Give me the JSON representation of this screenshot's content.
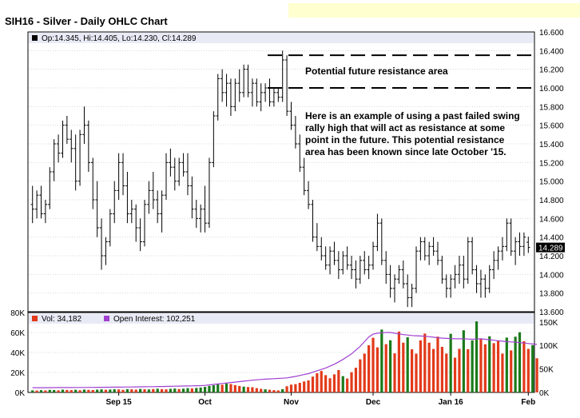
{
  "title": "SIH16 - Silver - Daily OHLC Chart",
  "price_panel": {
    "legend": "Op:14.345, Hi:14.405, Lo:14.230, Cl:14.289",
    "last_price_label": "14.289"
  },
  "volume_panel": {
    "volume_legend": "Vol: 34,182",
    "oi_legend": "Open Interest: 102,251"
  },
  "annotations": {
    "resistance_label": "Potential future resistance area",
    "note_lines": [
      "Here is an example of using a past failed swing",
      "rally high that will act as resistance at some",
      "point in the future.  This potential resistance",
      "area has been known since late October '15."
    ]
  },
  "colors": {
    "up_volume": "#1a7a1a",
    "down_volume": "#e23a1a",
    "open_interest": "#a040d0",
    "price_bar": "#000000",
    "legend_bar": "#e8eaf5"
  },
  "chart_data": [
    {
      "type": "ohlc",
      "title": "SIH16 - Silver - Daily OHLC Chart",
      "x_tick_labels": [
        "Sep 15",
        "Oct",
        "Nov",
        "Dec",
        "Jan 16",
        "Feb"
      ],
      "x_tick_bar_index": [
        20,
        40,
        60,
        79,
        97,
        115
      ],
      "y_tick_labels": [
        "13.600",
        "13.800",
        "14.000",
        "14.200",
        "14.400",
        "14.600",
        "14.800",
        "15.000",
        "15.200",
        "15.400",
        "15.600",
        "15.800",
        "16.000",
        "16.200",
        "16.400",
        "16.600"
      ],
      "ylim": [
        13.6,
        16.6
      ],
      "resistance_lines": [
        16.35,
        16.0
      ],
      "bars": [
        [
          14.75,
          14.95,
          14.55,
          14.7
        ],
        [
          14.7,
          14.9,
          14.6,
          14.85
        ],
        [
          14.85,
          14.95,
          14.6,
          14.65
        ],
        [
          14.65,
          14.8,
          14.55,
          14.75
        ],
        [
          14.75,
          15.15,
          14.7,
          15.1
        ],
        [
          15.1,
          15.45,
          15.0,
          15.4
        ],
        [
          15.4,
          15.5,
          15.2,
          15.3
        ],
        [
          15.3,
          15.65,
          15.25,
          15.6
        ],
        [
          15.6,
          15.7,
          15.4,
          15.45
        ],
        [
          15.45,
          15.55,
          15.2,
          15.35
        ],
        [
          15.35,
          15.5,
          14.9,
          15.0
        ],
        [
          15.0,
          15.55,
          14.95,
          15.5
        ],
        [
          15.5,
          15.8,
          15.4,
          15.6
        ],
        [
          15.6,
          15.65,
          15.1,
          15.2
        ],
        [
          15.2,
          15.25,
          14.7,
          14.8
        ],
        [
          14.8,
          15.0,
          14.4,
          14.5
        ],
        [
          14.5,
          14.6,
          14.05,
          14.2
        ],
        [
          14.2,
          14.4,
          14.1,
          14.35
        ],
        [
          14.35,
          14.7,
          14.3,
          14.65
        ],
        [
          14.65,
          15.0,
          14.55,
          14.9
        ],
        [
          14.9,
          15.3,
          14.8,
          15.2
        ],
        [
          15.2,
          15.3,
          14.85,
          14.95
        ],
        [
          14.95,
          15.1,
          14.55,
          14.65
        ],
        [
          14.65,
          14.8,
          14.55,
          14.7
        ],
        [
          14.7,
          14.75,
          14.35,
          14.5
        ],
        [
          14.5,
          14.6,
          14.25,
          14.35
        ],
        [
          14.35,
          14.8,
          14.3,
          14.75
        ],
        [
          14.75,
          15.0,
          14.65,
          14.9
        ],
        [
          14.9,
          15.1,
          14.7,
          14.8
        ],
        [
          14.8,
          14.9,
          14.55,
          14.65
        ],
        [
          14.65,
          14.9,
          14.45,
          14.85
        ],
        [
          14.85,
          15.3,
          14.8,
          15.2
        ],
        [
          15.2,
          15.35,
          15.05,
          15.15
        ],
        [
          15.15,
          15.25,
          14.9,
          15.0
        ],
        [
          15.0,
          15.25,
          14.95,
          15.2
        ],
        [
          15.2,
          15.3,
          15.05,
          15.1
        ],
        [
          15.1,
          15.3,
          14.85,
          14.95
        ],
        [
          14.95,
          15.05,
          14.6,
          14.7
        ],
        [
          14.7,
          14.8,
          14.5,
          14.6
        ],
        [
          14.6,
          14.75,
          14.45,
          14.7
        ],
        [
          14.7,
          14.95,
          14.45,
          14.55
        ],
        [
          14.55,
          15.25,
          14.5,
          15.2
        ],
        [
          15.2,
          15.75,
          15.15,
          15.7
        ],
        [
          15.7,
          16.15,
          15.65,
          16.1
        ],
        [
          16.1,
          16.2,
          15.85,
          15.95
        ],
        [
          15.95,
          16.15,
          15.8,
          16.05
        ],
        [
          16.05,
          16.1,
          15.7,
          15.8
        ],
        [
          15.8,
          16.1,
          15.75,
          16.05
        ],
        [
          16.05,
          16.2,
          15.85,
          15.95
        ],
        [
          15.95,
          16.25,
          15.9,
          16.2
        ],
        [
          16.2,
          16.25,
          15.9,
          15.95
        ],
        [
          15.95,
          16.1,
          15.8,
          16.05
        ],
        [
          16.05,
          16.1,
          15.8,
          15.85
        ],
        [
          15.85,
          16.05,
          15.75,
          15.95
        ],
        [
          15.95,
          16.05,
          15.85,
          16.0
        ],
        [
          16.0,
          16.1,
          15.8,
          15.85
        ],
        [
          15.85,
          16.0,
          15.8,
          15.95
        ],
        [
          15.95,
          16.0,
          15.85,
          15.9
        ],
        [
          15.9,
          16.4,
          15.85,
          16.3
        ],
        [
          16.3,
          16.35,
          15.7,
          15.75
        ],
        [
          15.75,
          15.85,
          15.55,
          15.6
        ],
        [
          15.6,
          15.7,
          15.35,
          15.4
        ],
        [
          15.4,
          15.5,
          15.1,
          15.15
        ],
        [
          15.15,
          15.25,
          14.85,
          14.9
        ],
        [
          14.9,
          15.0,
          14.7,
          14.75
        ],
        [
          14.75,
          14.8,
          14.35,
          14.4
        ],
        [
          14.4,
          14.55,
          14.25,
          14.3
        ],
        [
          14.3,
          14.4,
          14.15,
          14.2
        ],
        [
          14.2,
          14.3,
          14.05,
          14.1
        ],
        [
          14.1,
          14.3,
          14.0,
          14.25
        ],
        [
          14.25,
          14.35,
          14.1,
          14.15
        ],
        [
          14.15,
          14.25,
          13.95,
          14.05
        ],
        [
          14.05,
          14.25,
          14.0,
          14.2
        ],
        [
          14.2,
          14.3,
          14.05,
          14.1
        ],
        [
          14.1,
          14.2,
          13.95,
          14.05
        ],
        [
          14.05,
          14.15,
          13.85,
          13.95
        ],
        [
          13.95,
          14.2,
          13.9,
          14.15
        ],
        [
          14.15,
          14.25,
          14.0,
          14.05
        ],
        [
          14.05,
          14.2,
          13.95,
          14.1
        ],
        [
          14.1,
          14.35,
          14.05,
          14.3
        ],
        [
          14.3,
          14.65,
          14.25,
          14.55
        ],
        [
          14.55,
          14.6,
          14.1,
          14.15
        ],
        [
          14.15,
          14.25,
          13.9,
          14.0
        ],
        [
          14.0,
          14.1,
          13.75,
          13.85
        ],
        [
          13.85,
          14.0,
          13.7,
          13.95
        ],
        [
          13.95,
          14.1,
          13.9,
          14.05
        ],
        [
          14.05,
          14.15,
          13.85,
          13.9
        ],
        [
          13.9,
          14.0,
          13.65,
          13.75
        ],
        [
          13.75,
          13.9,
          13.65,
          13.85
        ],
        [
          13.85,
          14.3,
          13.8,
          14.25
        ],
        [
          14.25,
          14.4,
          14.15,
          14.35
        ],
        [
          14.35,
          14.4,
          14.15,
          14.2
        ],
        [
          14.2,
          14.35,
          14.1,
          14.3
        ],
        [
          14.3,
          14.4,
          14.2,
          14.25
        ],
        [
          14.25,
          14.35,
          14.1,
          14.15
        ],
        [
          14.15,
          14.2,
          13.9,
          13.95
        ],
        [
          13.95,
          14.0,
          13.75,
          13.85
        ],
        [
          13.85,
          14.0,
          13.75,
          13.95
        ],
        [
          13.95,
          14.1,
          13.85,
          14.0
        ],
        [
          14.0,
          14.2,
          13.9,
          14.1
        ],
        [
          14.1,
          14.2,
          13.85,
          13.95
        ],
        [
          13.95,
          14.4,
          13.9,
          14.35
        ],
        [
          14.35,
          14.4,
          14.0,
          14.05
        ],
        [
          14.05,
          14.1,
          13.8,
          13.9
        ],
        [
          13.9,
          14.05,
          13.75,
          13.95
        ],
        [
          13.95,
          14.0,
          13.75,
          13.85
        ],
        [
          13.85,
          14.1,
          13.8,
          14.05
        ],
        [
          14.05,
          14.25,
          13.95,
          14.15
        ],
        [
          14.15,
          14.3,
          14.05,
          14.25
        ],
        [
          14.25,
          14.4,
          14.15,
          14.3
        ],
        [
          14.3,
          14.6,
          14.25,
          14.55
        ],
        [
          14.55,
          14.6,
          14.2,
          14.25
        ],
        [
          14.25,
          14.4,
          14.1,
          14.35
        ],
        [
          14.35,
          14.45,
          14.2,
          14.3
        ],
        [
          14.3,
          14.45,
          14.2,
          14.4
        ],
        [
          14.345,
          14.405,
          14.23,
          14.289
        ]
      ]
    },
    {
      "type": "bar",
      "y_tick_labels_left": [
        "0K",
        "20K",
        "40K",
        "60K",
        "80K"
      ],
      "ylim_left": [
        0,
        80000
      ],
      "y_tick_labels_right": [
        "0K",
        "50K",
        "100K",
        "150K"
      ],
      "ylim_right": [
        0,
        170000
      ],
      "volume": [
        2100,
        1900,
        2300,
        2000,
        2600,
        2400,
        2100,
        2800,
        2500,
        2300,
        2700,
        2200,
        2900,
        2600,
        2400,
        2800,
        3100,
        2700,
        2900,
        3200,
        3000,
        2600,
        3300,
        3100,
        2800,
        3500,
        3200,
        3000,
        3400,
        3700,
        3300,
        3100,
        3600,
        3900,
        3400,
        3800,
        4300,
        4000,
        4500,
        4900,
        5600,
        6500,
        7200,
        8100,
        7700,
        9000,
        8400,
        7300,
        6500,
        5800,
        5400,
        5200,
        4300,
        3600,
        3100,
        2700,
        2300,
        2000,
        3300,
        6200,
        7800,
        8300,
        9600,
        11000,
        12100,
        15800,
        19200,
        21500,
        17300,
        14200,
        18100,
        22400,
        16300,
        13900,
        20200,
        24700,
        33100,
        38900,
        47200,
        54700,
        45100,
        62900,
        48300,
        52200,
        39100,
        60900,
        49800,
        55200,
        43200,
        38800,
        52100,
        58900,
        49800,
        43500,
        55800,
        45600,
        38900,
        58700,
        34800,
        43600,
        62200,
        43300,
        52100,
        71100,
        53600,
        48200,
        56200,
        49300,
        51700,
        38900,
        54900,
        42100,
        55800,
        60200,
        51300,
        43600,
        47300,
        34182
      ],
      "volume_up": [
        true,
        false,
        true,
        false,
        true,
        true,
        false,
        true,
        false,
        false,
        true,
        false,
        true,
        false,
        false,
        true,
        true,
        false,
        true,
        true,
        false,
        false,
        true,
        false,
        false,
        true,
        false,
        true,
        false,
        true,
        false,
        false,
        true,
        true,
        false,
        true,
        true,
        false,
        true,
        true,
        true,
        true,
        true,
        true,
        false,
        true,
        false,
        false,
        false,
        true,
        false,
        false,
        false,
        false,
        true,
        false,
        false,
        false,
        true,
        false,
        false,
        false,
        false,
        false,
        false,
        false,
        false,
        false,
        false,
        false,
        false,
        false,
        true,
        false,
        false,
        false,
        false,
        false,
        false,
        false,
        false,
        true,
        false,
        true,
        false,
        false,
        false,
        true,
        false,
        false,
        false,
        false,
        false,
        false,
        false,
        false,
        false,
        true,
        false,
        false,
        true,
        false,
        true,
        true,
        false,
        false,
        true,
        false,
        false,
        false,
        true,
        false,
        true,
        true,
        false,
        false,
        true,
        false
      ],
      "open_interest": [
        10000,
        10000,
        10100,
        10100,
        10200,
        10200,
        10300,
        10300,
        10400,
        10400,
        10500,
        10500,
        10600,
        10700,
        10700,
        10800,
        10900,
        11000,
        11100,
        11200,
        11300,
        11400,
        11500,
        11600,
        11800,
        11900,
        12000,
        12200,
        12300,
        12500,
        12600,
        12800,
        13000,
        13200,
        13400,
        13600,
        13800,
        14000,
        14200,
        14500,
        15000,
        16000,
        17000,
        18000,
        19000,
        20000,
        21000,
        22000,
        23000,
        24000,
        25000,
        26000,
        26800,
        27600,
        28200,
        28800,
        29300,
        29700,
        30200,
        31000,
        32500,
        34000,
        36000,
        38000,
        40000,
        43000,
        46000,
        49000,
        52000,
        56000,
        60000,
        65000,
        70000,
        76000,
        82000,
        90000,
        98000,
        108000,
        118000,
        124000,
        126000,
        127000,
        127500,
        127500,
        126000,
        124500,
        123000,
        122000,
        121000,
        120500,
        120000,
        119500,
        118500,
        117500,
        116500,
        115500,
        115000,
        114500,
        114000,
        114000,
        114000,
        113500,
        113000,
        113500,
        114000,
        113000,
        112000,
        111000,
        110000,
        109000,
        108000,
        107500,
        107000,
        106000,
        105000,
        104000,
        103000,
        102251
      ]
    }
  ]
}
